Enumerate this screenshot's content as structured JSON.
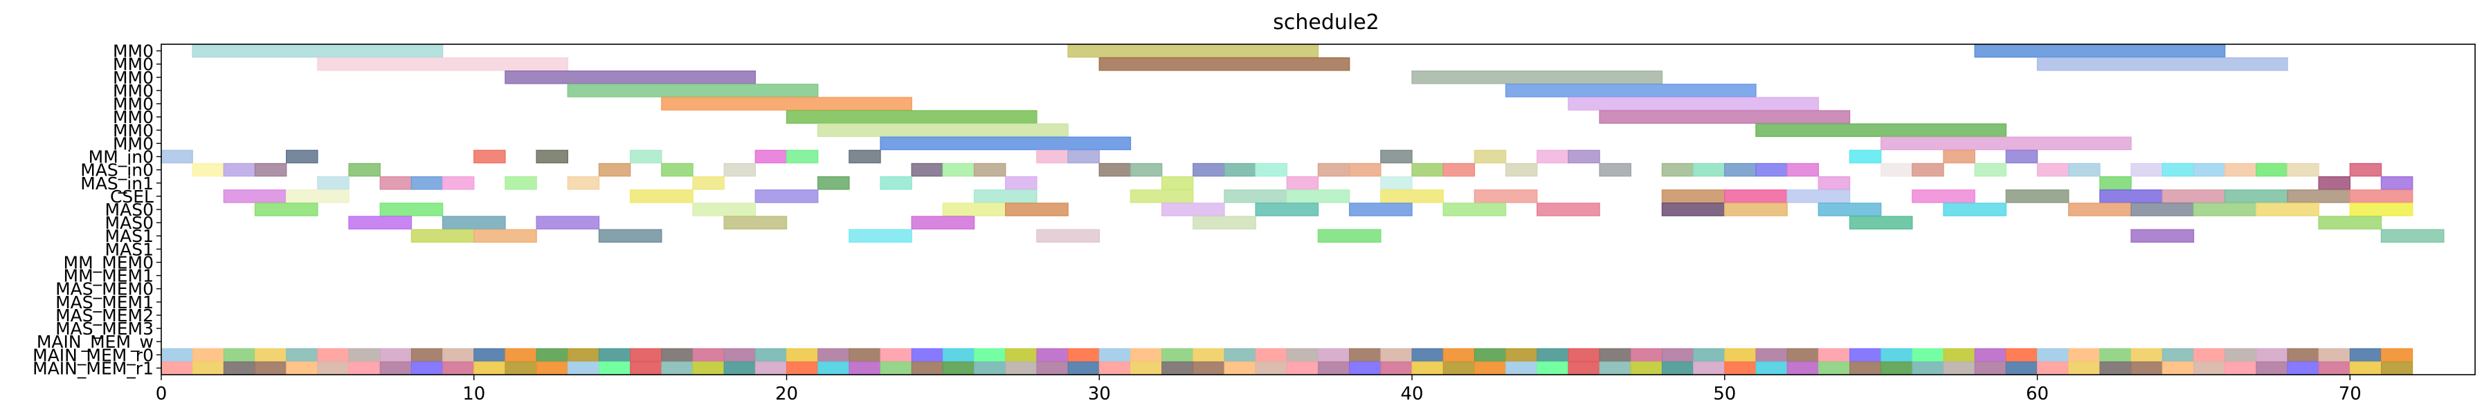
{
  "chart_data": {
    "type": "gantt",
    "title": "schedule2",
    "xlabel": "",
    "ylabel": "",
    "xlim": [
      0,
      74
    ],
    "xticks": [
      0,
      10,
      20,
      30,
      40,
      50,
      60,
      70
    ],
    "grid": false,
    "rows": [
      "MM0",
      "MM0",
      "MM0",
      "MM0",
      "MM0",
      "MM0",
      "MM0",
      "MM0",
      "MM_in0",
      "MAS_in0",
      "MAS_in1",
      "CSEL",
      "MAS0",
      "MAS0",
      "MAS1",
      "MAS1",
      "MM_MEM0",
      "MM_MEM1",
      "MAS_MEM0",
      "MAS_MEM1",
      "MAS_MEM2",
      "MAS_MEM3",
      "MAIN_MEM_w",
      "MAIN_MEM_r0",
      "MAIN_MEM_r1"
    ],
    "palette": [
      "#a0cbe8",
      "#ffbe7d",
      "#8cd17d",
      "#f1ce63",
      "#86bcb6",
      "#ff9d9a",
      "#bab0ac",
      "#d4a6c8",
      "#9d7660",
      "#d7b5a6",
      "#4e79a7",
      "#f28e2b",
      "#59a14f",
      "#b6992d",
      "#499894",
      "#e15759",
      "#79706e",
      "#d37295",
      "#b07aa1",
      "#76b7b2",
      "#edc948",
      "#af7aa1",
      "#9c755f",
      "#ff9da7",
      "#7a6cff",
      "#4dd0e1",
      "#66ff99",
      "#c0ca33",
      "#ba68c8",
      "#ff7043"
    ],
    "bars": [
      {
        "row": 0,
        "start": 1,
        "end": 9,
        "color": "#a8dcd9"
      },
      {
        "row": 0,
        "start": 29,
        "end": 37,
        "color": "#c9c46a"
      },
      {
        "row": 0,
        "start": 58,
        "end": 66,
        "color": "#5b8fd9"
      },
      {
        "row": 1,
        "start": 5,
        "end": 13,
        "color": "#f6d4dc"
      },
      {
        "row": 1,
        "start": 30,
        "end": 38,
        "color": "#a0704e"
      },
      {
        "row": 1,
        "start": 60,
        "end": 68,
        "color": "#a9bde8"
      },
      {
        "row": 2,
        "start": 11,
        "end": 19,
        "color": "#8e71b4"
      },
      {
        "row": 2,
        "start": 40,
        "end": 48,
        "color": "#a5b5a5"
      },
      {
        "row": 3,
        "start": 13,
        "end": 21,
        "color": "#7fc98a"
      },
      {
        "row": 3,
        "start": 43,
        "end": 51,
        "color": "#6a9be6"
      },
      {
        "row": 4,
        "start": 16,
        "end": 24,
        "color": "#f79d5c"
      },
      {
        "row": 4,
        "start": 45,
        "end": 53,
        "color": "#dab0ee"
      },
      {
        "row": 5,
        "start": 20,
        "end": 28,
        "color": "#78c054"
      },
      {
        "row": 5,
        "start": 46,
        "end": 54,
        "color": "#c47aae"
      },
      {
        "row": 6,
        "start": 21,
        "end": 29,
        "color": "#cde4a2"
      },
      {
        "row": 6,
        "start": 51,
        "end": 59,
        "color": "#6bb65a"
      },
      {
        "row": 7,
        "start": 23,
        "end": 31,
        "color": "#5d8fe0"
      },
      {
        "row": 7,
        "start": 55,
        "end": 63,
        "color": "#e2a6d8"
      },
      {
        "row": 8,
        "start": 0,
        "end": 1,
        "color": "#a8c4e6"
      },
      {
        "row": 8,
        "start": 4,
        "end": 5,
        "color": "#5f738c"
      },
      {
        "row": 8,
        "start": 10,
        "end": 11,
        "color": "#f07261"
      },
      {
        "row": 8,
        "start": 12,
        "end": 13,
        "color": "#6f7360"
      },
      {
        "row": 8,
        "start": 15,
        "end": 16,
        "color": "#a8eac8"
      },
      {
        "row": 8,
        "start": 19,
        "end": 20,
        "color": "#e573d8"
      },
      {
        "row": 8,
        "start": 20,
        "end": 21,
        "color": "#73f090"
      },
      {
        "row": 8,
        "start": 22,
        "end": 23,
        "color": "#66737d"
      },
      {
        "row": 8,
        "start": 28,
        "end": 29,
        "color": "#f2b8d4"
      },
      {
        "row": 8,
        "start": 29,
        "end": 30,
        "color": "#a7a7dc"
      },
      {
        "row": 8,
        "start": 39,
        "end": 40,
        "color": "#7b8a8a"
      },
      {
        "row": 8,
        "start": 42,
        "end": 43,
        "color": "#dcd68a"
      },
      {
        "row": 8,
        "start": 44,
        "end": 45,
        "color": "#f1b3dd"
      },
      {
        "row": 8,
        "start": 45,
        "end": 46,
        "color": "#a88fc9"
      },
      {
        "row": 8,
        "start": 54,
        "end": 55,
        "color": "#58e9f0"
      },
      {
        "row": 8,
        "start": 57,
        "end": 58,
        "color": "#e6a07a"
      },
      {
        "row": 8,
        "start": 59,
        "end": 60,
        "color": "#8f7ed6"
      },
      {
        "row": 9,
        "start": 1,
        "end": 2,
        "color": "#fdf3a6"
      },
      {
        "row": 9,
        "start": 2,
        "end": 3,
        "color": "#b8a4e6"
      },
      {
        "row": 9,
        "start": 3,
        "end": 4,
        "color": "#9f7e96"
      },
      {
        "row": 9,
        "start": 6,
        "end": 7,
        "color": "#7fbf6b"
      },
      {
        "row": 9,
        "start": 14,
        "end": 15,
        "color": "#d6a06c"
      },
      {
        "row": 9,
        "start": 16,
        "end": 17,
        "color": "#8fd670"
      },
      {
        "row": 9,
        "start": 18,
        "end": 19,
        "color": "#d8d8c8"
      },
      {
        "row": 9,
        "start": 24,
        "end": 25,
        "color": "#7a6a86"
      },
      {
        "row": 9,
        "start": 25,
        "end": 26,
        "color": "#a5f0a0"
      },
      {
        "row": 9,
        "start": 26,
        "end": 27,
        "color": "#b8a488"
      },
      {
        "row": 9,
        "start": 30,
        "end": 31,
        "color": "#8e7c70"
      },
      {
        "row": 9,
        "start": 31,
        "end": 32,
        "color": "#8cb89c"
      },
      {
        "row": 9,
        "start": 33,
        "end": 34,
        "color": "#7d85c3"
      },
      {
        "row": 9,
        "start": 34,
        "end": 35,
        "color": "#72b5a4"
      },
      {
        "row": 9,
        "start": 35,
        "end": 36,
        "color": "#a3f0d8"
      },
      {
        "row": 9,
        "start": 37,
        "end": 38,
        "color": "#d9a38e"
      },
      {
        "row": 9,
        "start": 38,
        "end": 39,
        "color": "#eaa882"
      },
      {
        "row": 9,
        "start": 40,
        "end": 41,
        "color": "#9fcf6a"
      },
      {
        "row": 9,
        "start": 41,
        "end": 42,
        "color": "#f08a80"
      },
      {
        "row": 9,
        "start": 43,
        "end": 44,
        "color": "#d6d6b8"
      },
      {
        "row": 9,
        "start": 46,
        "end": 47,
        "color": "#a0a4a8"
      },
      {
        "row": 9,
        "start": 48,
        "end": 49,
        "color": "#9dba8e"
      },
      {
        "row": 9,
        "start": 49,
        "end": 50,
        "color": "#8ae0c0"
      },
      {
        "row": 9,
        "start": 50,
        "end": 51,
        "color": "#6d98c8"
      },
      {
        "row": 9,
        "start": 51,
        "end": 52,
        "color": "#7a78f0"
      },
      {
        "row": 9,
        "start": 52,
        "end": 53,
        "color": "#e07ad8"
      },
      {
        "row": 9,
        "start": 55,
        "end": 56,
        "color": "#f0e8e8"
      },
      {
        "row": 9,
        "start": 56,
        "end": 57,
        "color": "#d9988a"
      },
      {
        "row": 9,
        "start": 58,
        "end": 59,
        "color": "#b4f0b8"
      },
      {
        "row": 9,
        "start": 60,
        "end": 61,
        "color": "#f5b0d8"
      },
      {
        "row": 9,
        "start": 61,
        "end": 62,
        "color": "#a8d0e0"
      },
      {
        "row": 9,
        "start": 63,
        "end": 64,
        "color": "#d8d0f0"
      },
      {
        "row": 9,
        "start": 64,
        "end": 65,
        "color": "#70e8f0"
      },
      {
        "row": 9,
        "start": 65,
        "end": 66,
        "color": "#9ad4f0"
      },
      {
        "row": 9,
        "start": 66,
        "end": 67,
        "color": "#f5c8a0"
      },
      {
        "row": 9,
        "start": 67,
        "end": 68,
        "color": "#70e870"
      },
      {
        "row": 9,
        "start": 68,
        "end": 69,
        "color": "#e8d8b0"
      },
      {
        "row": 9,
        "start": 70,
        "end": 71,
        "color": "#d86078"
      },
      {
        "row": 10,
        "start": 5,
        "end": 6,
        "color": "#bfe2ea"
      },
      {
        "row": 10,
        "start": 7,
        "end": 8,
        "color": "#dc8ca4"
      },
      {
        "row": 10,
        "start": 8,
        "end": 9,
        "color": "#6d9fdc"
      },
      {
        "row": 10,
        "start": 9,
        "end": 10,
        "color": "#f3a2dc"
      },
      {
        "row": 10,
        "start": 11,
        "end": 12,
        "color": "#a8f09a"
      },
      {
        "row": 10,
        "start": 13,
        "end": 14,
        "color": "#f5d3a4"
      },
      {
        "row": 10,
        "start": 17,
        "end": 18,
        "color": "#f0e880"
      },
      {
        "row": 10,
        "start": 21,
        "end": 22,
        "color": "#66aa66"
      },
      {
        "row": 10,
        "start": 23,
        "end": 24,
        "color": "#90e8d0"
      },
      {
        "row": 10,
        "start": 27,
        "end": 28,
        "color": "#d8b0f0"
      },
      {
        "row": 10,
        "start": 32,
        "end": 33,
        "color": "#cde87a"
      },
      {
        "row": 10,
        "start": 36,
        "end": 37,
        "color": "#f2a8d8"
      },
      {
        "row": 10,
        "start": 39,
        "end": 40,
        "color": "#c8f0e8"
      },
      {
        "row": 10,
        "start": 53,
        "end": 54,
        "color": "#e8a0e0"
      },
      {
        "row": 10,
        "start": 62,
        "end": 63,
        "color": "#78d870"
      },
      {
        "row": 10,
        "start": 69,
        "end": 70,
        "color": "#a0507a"
      },
      {
        "row": 10,
        "start": 71,
        "end": 72,
        "color": "#a070e0"
      },
      {
        "row": 11,
        "start": 2,
        "end": 4,
        "color": "#d98ae0"
      },
      {
        "row": 11,
        "start": 4,
        "end": 6,
        "color": "#eef3c9"
      },
      {
        "row": 11,
        "start": 15,
        "end": 17,
        "color": "#f0e870"
      },
      {
        "row": 11,
        "start": 19,
        "end": 21,
        "color": "#9d8ee6"
      },
      {
        "row": 11,
        "start": 26,
        "end": 28,
        "color": "#a8e8d0"
      },
      {
        "row": 11,
        "start": 31,
        "end": 33,
        "color": "#d0e880"
      },
      {
        "row": 11,
        "start": 34,
        "end": 36,
        "color": "#a8d8c0"
      },
      {
        "row": 11,
        "start": 36,
        "end": 38,
        "color": "#b0f0c0"
      },
      {
        "row": 11,
        "start": 39,
        "end": 41,
        "color": "#f0e870"
      },
      {
        "row": 11,
        "start": 42,
        "end": 44,
        "color": "#f0a098"
      },
      {
        "row": 11,
        "start": 48,
        "end": 50,
        "color": "#c89060"
      },
      {
        "row": 11,
        "start": 50,
        "end": 52,
        "color": "#f0609c"
      },
      {
        "row": 11,
        "start": 52,
        "end": 54,
        "color": "#b8c8f0"
      },
      {
        "row": 11,
        "start": 56,
        "end": 58,
        "color": "#f088d8"
      },
      {
        "row": 11,
        "start": 59,
        "end": 61,
        "color": "#8a9a80"
      },
      {
        "row": 11,
        "start": 62,
        "end": 64,
        "color": "#7a68e0"
      },
      {
        "row": 11,
        "start": 64,
        "end": 66,
        "color": "#d898a8"
      },
      {
        "row": 11,
        "start": 66,
        "end": 68,
        "color": "#78c0a0"
      },
      {
        "row": 11,
        "start": 68,
        "end": 70,
        "color": "#a89078"
      },
      {
        "row": 11,
        "start": 70,
        "end": 72,
        "color": "#f08888"
      },
      {
        "row": 12,
        "start": 3,
        "end": 5,
        "color": "#88e070"
      },
      {
        "row": 12,
        "start": 7,
        "end": 9,
        "color": "#78e878"
      },
      {
        "row": 12,
        "start": 17,
        "end": 19,
        "color": "#d8f0b0"
      },
      {
        "row": 12,
        "start": 25,
        "end": 27,
        "color": "#e8f090"
      },
      {
        "row": 12,
        "start": 27,
        "end": 29,
        "color": "#d8905a"
      },
      {
        "row": 12,
        "start": 32,
        "end": 34,
        "color": "#dcb8f0"
      },
      {
        "row": 12,
        "start": 35,
        "end": 37,
        "color": "#60c0b0"
      },
      {
        "row": 12,
        "start": 38,
        "end": 40,
        "color": "#6a98e0"
      },
      {
        "row": 12,
        "start": 41,
        "end": 43,
        "color": "#a8e888"
      },
      {
        "row": 12,
        "start": 44,
        "end": 46,
        "color": "#e88098"
      },
      {
        "row": 12,
        "start": 48,
        "end": 50,
        "color": "#6a4c70"
      },
      {
        "row": 12,
        "start": 50,
        "end": 52,
        "color": "#e8b870"
      },
      {
        "row": 12,
        "start": 53,
        "end": 55,
        "color": "#60b8d8"
      },
      {
        "row": 12,
        "start": 57,
        "end": 59,
        "color": "#58d8e8"
      },
      {
        "row": 12,
        "start": 61,
        "end": 63,
        "color": "#e8a070"
      },
      {
        "row": 12,
        "start": 63,
        "end": 65,
        "color": "#808898"
      },
      {
        "row": 12,
        "start": 65,
        "end": 67,
        "color": "#98d080"
      },
      {
        "row": 12,
        "start": 67,
        "end": 69,
        "color": "#f0d870"
      },
      {
        "row": 12,
        "start": 70,
        "end": 72,
        "color": "#f0f048"
      },
      {
        "row": 13,
        "start": 6,
        "end": 8,
        "color": "#c070f0"
      },
      {
        "row": 13,
        "start": 9,
        "end": 11,
        "color": "#70a8b8"
      },
      {
        "row": 13,
        "start": 12,
        "end": 14,
        "color": "#a080e0"
      },
      {
        "row": 13,
        "start": 18,
        "end": 20,
        "color": "#c0c080"
      },
      {
        "row": 13,
        "start": 24,
        "end": 26,
        "color": "#d070d8"
      },
      {
        "row": 13,
        "start": 33,
        "end": 35,
        "color": "#d0e0b8"
      },
      {
        "row": 13,
        "start": 54,
        "end": 56,
        "color": "#58c098"
      },
      {
        "row": 13,
        "start": 69,
        "end": 71,
        "color": "#9cd870"
      },
      {
        "row": 14,
        "start": 8,
        "end": 10,
        "color": "#c8d860"
      },
      {
        "row": 14,
        "start": 10,
        "end": 12,
        "color": "#f0b078"
      },
      {
        "row": 14,
        "start": 14,
        "end": 16,
        "color": "#70909c"
      },
      {
        "row": 14,
        "start": 22,
        "end": 24,
        "color": "#78e8f0"
      },
      {
        "row": 14,
        "start": 28,
        "end": 30,
        "color": "#e0c8d0"
      },
      {
        "row": 14,
        "start": 37,
        "end": 39,
        "color": "#78e078"
      },
      {
        "row": 14,
        "start": 63,
        "end": 65,
        "color": "#a070c8"
      },
      {
        "row": 14,
        "start": 71,
        "end": 73,
        "color": "#80c8a8"
      }
    ],
    "main_mem_w": [
      "#a0cbe8",
      "#ffbe7d",
      "#8cd17d",
      "#f1ce63",
      "#86bcb6",
      "#ff9d9a",
      "#bab0ac",
      "#d4a6c8",
      "#9d7660",
      "#d7b5a6",
      "#4e79a7",
      "#f28e2b",
      "#59a14f",
      "#b6992d",
      "#499894",
      "#e15759",
      "#79706e",
      "#d37295",
      "#b07aa1",
      "#76b7b2",
      "#edc948",
      "#af7aa1",
      "#9c755f",
      "#ff9da7",
      "#7a6cff",
      "#4dd0e1",
      "#66ff99",
      "#c0ca33",
      "#ba68c8",
      "#ff7043",
      "#a0cbe8",
      "#ffbe7d",
      "#8cd17d",
      "#f1ce63",
      "#86bcb6",
      "#ff9d9a",
      "#bab0ac",
      "#d4a6c8",
      "#9d7660",
      "#d7b5a6",
      "#4e79a7",
      "#f28e2b",
      "#59a14f",
      "#b6992d",
      "#499894",
      "#e15759",
      "#79706e",
      "#d37295",
      "#b07aa1",
      "#76b7b2",
      "#edc948",
      "#af7aa1",
      "#9c755f",
      "#ff9da7",
      "#7a6cff",
      "#4dd0e1",
      "#66ff99",
      "#c0ca33",
      "#ba68c8",
      "#ff7043",
      "#a0cbe8",
      "#ffbe7d",
      "#8cd17d",
      "#f1ce63",
      "#86bcb6",
      "#ff9d9a",
      "#bab0ac",
      "#d4a6c8",
      "#9d7660",
      "#d7b5a6",
      "#4e79a7",
      "#f28e2b"
    ],
    "main_mem_r": [
      "#ff9d9a",
      "#f1ce63",
      "#79706e",
      "#9d7660",
      "#ffbe7d",
      "#d7b5a6",
      "#ff9da7",
      "#b07aa1",
      "#7a6cff",
      "#d37295",
      "#edc948",
      "#b6992d",
      "#f28e2b",
      "#a0cbe8",
      "#66ff99",
      "#e15759",
      "#86bcb6",
      "#c0ca33",
      "#499894",
      "#d4a6c8",
      "#ff7043",
      "#4dd0e1",
      "#ba68c8",
      "#8cd17d",
      "#9c755f",
      "#59a14f",
      "#76b7b2",
      "#bab0ac",
      "#af7aa1",
      "#4e79a7",
      "#ff9d9a",
      "#f1ce63",
      "#79706e",
      "#9d7660",
      "#ffbe7d",
      "#d7b5a6",
      "#ff9da7",
      "#b07aa1",
      "#7a6cff",
      "#d37295",
      "#edc948",
      "#b6992d",
      "#f28e2b",
      "#a0cbe8",
      "#66ff99",
      "#e15759",
      "#86bcb6",
      "#c0ca33",
      "#499894",
      "#d4a6c8",
      "#ff7043",
      "#4dd0e1",
      "#ba68c8",
      "#8cd17d",
      "#9c755f",
      "#59a14f",
      "#76b7b2",
      "#bab0ac",
      "#af7aa1",
      "#4e79a7",
      "#ff9d9a",
      "#f1ce63",
      "#79706e",
      "#9d7660",
      "#ffbe7d",
      "#d7b5a6",
      "#ff9da7",
      "#b07aa1",
      "#7a6cff",
      "#d37295",
      "#edc948",
      "#b6992d"
    ]
  }
}
